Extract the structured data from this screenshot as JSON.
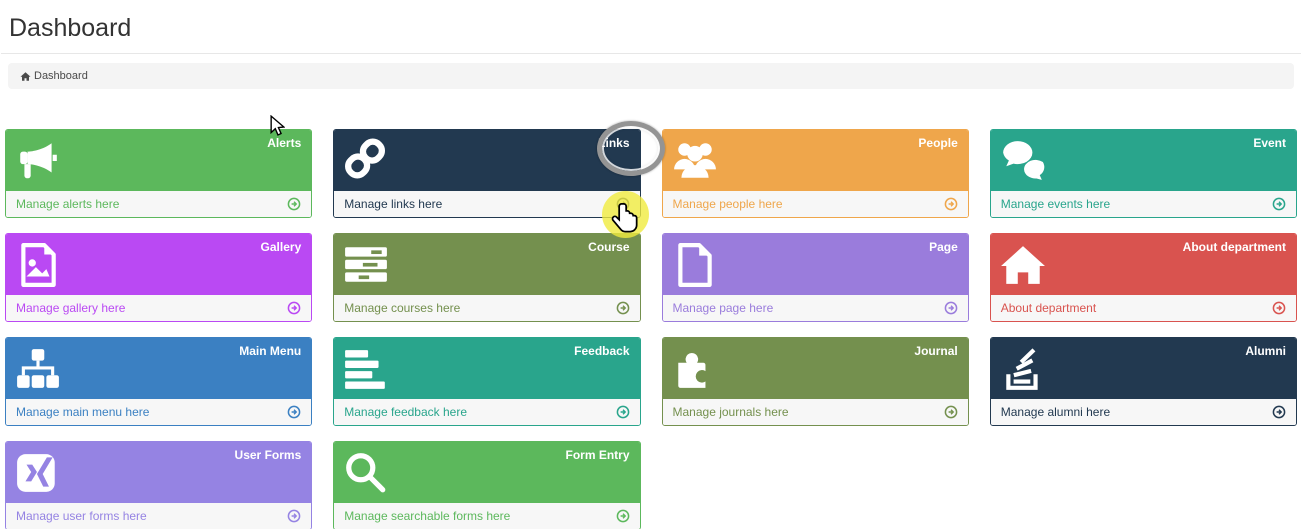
{
  "page": {
    "title": "Dashboard"
  },
  "breadcrumb": {
    "icon": "home-icon",
    "items": [
      {
        "label": "Dashboard"
      }
    ]
  },
  "tiles": [
    {
      "name": "Alerts",
      "icon": "bullhorn-icon",
      "color": "#5cb85c",
      "footer_text": "Manage alerts here"
    },
    {
      "name": "Links",
      "icon": "chain-icon",
      "color": "#223950",
      "footer_text": "Manage links here"
    },
    {
      "name": "People",
      "icon": "users-icon",
      "color": "#efa64b",
      "footer_text": "Manage people here"
    },
    {
      "name": "Event",
      "icon": "comments-icon",
      "color": "#29a58c",
      "footer_text": "Manage events here"
    },
    {
      "name": "Gallery",
      "icon": "image-icon",
      "color": "#ba49f3",
      "footer_text": "Manage gallery here"
    },
    {
      "name": "Course",
      "icon": "tasks-icon",
      "color": "#74904e",
      "footer_text": "Manage courses here"
    },
    {
      "name": "Page",
      "icon": "file-icon",
      "color": "#9a7cdc",
      "footer_text": "Manage page here"
    },
    {
      "name": "About department",
      "icon": "home-icon",
      "color": "#d9534f",
      "footer_text": "About department"
    },
    {
      "name": "Main Menu",
      "icon": "sitemap-icon",
      "color": "#3b80c2",
      "footer_text": "Manage main menu here"
    },
    {
      "name": "Feedback",
      "icon": "align-left-icon",
      "color": "#29a58c",
      "footer_text": "Manage feedback here"
    },
    {
      "name": "Journal",
      "icon": "puzzle-icon",
      "color": "#74904e",
      "footer_text": "Manage journals here"
    },
    {
      "name": "Alumni",
      "icon": "stack-icon",
      "color": "#223950",
      "footer_text": "Manage alumni here"
    },
    {
      "name": "User Forms",
      "icon": "xing-icon",
      "color": "#9583e3",
      "footer_text": "Manage user forms here"
    },
    {
      "name": "Form Entry",
      "icon": "search-icon",
      "color": "#5cb85c",
      "footer_text": "Manage searchable forms here"
    }
  ],
  "footer_arrow_icon": "arrow-circle-icon",
  "annotations": {
    "ring_highlight_target": "Links",
    "circle_highlight_target": "Manage links here arrow",
    "cursors": [
      "arrow-cursor",
      "hand-cursor"
    ]
  }
}
